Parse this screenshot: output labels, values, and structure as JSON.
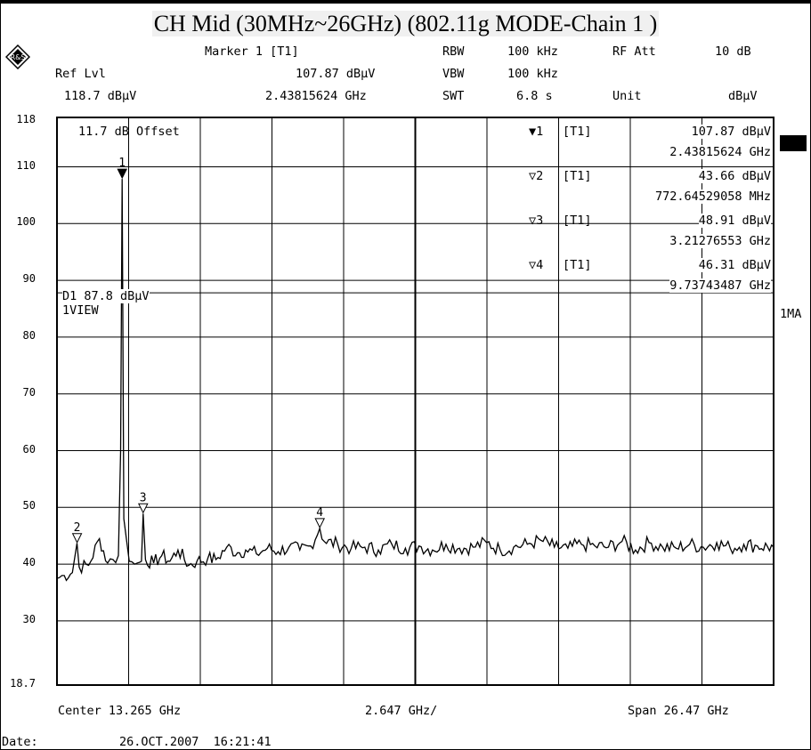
{
  "title": "CH Mid (30MHz~26GHz) (802.11g MODE-Chain 1 )",
  "header": {
    "marker_label": "Marker 1 [T1]",
    "ref_lvl_label": "Ref Lvl",
    "marker_level": "107.87 dBµV",
    "ref_lvl_value": "118.7 dBµV",
    "marker_freq": "2.43815624 GHz",
    "rbw_label": "RBW",
    "rbw_value": "100 kHz",
    "rfatt_label": "RF Att",
    "rfatt_value": "10 dB",
    "vbw_label": "VBW",
    "vbw_value": "100 kHz",
    "swt_label": "SWT",
    "swt_value": "6.8 s",
    "unit_label": "Unit",
    "unit_value": "dBµV"
  },
  "plot": {
    "offset_label": "11.7 dB Offset",
    "display_line_label": "D1 87.8 dBµV",
    "view_label": "1VIEW",
    "side_label": "1MA",
    "y_ticks": [
      "118",
      "110",
      "100",
      "90",
      "80",
      "70",
      "60",
      "50",
      "40",
      "30",
      "18.7"
    ],
    "marker_table": [
      {
        "sym": "▼1",
        "trace": "[T1]",
        "level": "107.87 dBµV",
        "freq": "2.43815624 GHz"
      },
      {
        "sym": "▽2",
        "trace": "[T1]",
        "level": "43.66 dBµV",
        "freq": "772.64529058 MHz"
      },
      {
        "sym": "▽3",
        "trace": "[T1]",
        "level": "48.91 dBµV",
        "freq": "3.21276553 GHz"
      },
      {
        "sym": "▽4",
        "trace": "[T1]",
        "level": "46.31 dBµV",
        "freq": "9.73743487 GHz"
      }
    ],
    "marker_flags": [
      "1",
      "2",
      "3",
      "4"
    ]
  },
  "footer": {
    "center": "Center 13.265 GHz",
    "div": "2.647 GHz/",
    "span": "Span 26.47 GHz",
    "date_label": "Date:",
    "date_value": "26.OCT.2007  16:21:41"
  },
  "chart_data": {
    "type": "line",
    "title": "CH Mid (30MHz~26GHz) (802.11g MODE-Chain 1 )",
    "xlabel": "",
    "ylabel": "",
    "xlim": [
      0.03,
      26.5
    ],
    "ylim": [
      18.7,
      118.7
    ],
    "grid": true,
    "display_line": 87.8,
    "markers": [
      {
        "id": 1,
        "x": 2.43815624,
        "y": 107.87
      },
      {
        "id": 2,
        "x": 0.77264529,
        "y": 43.66
      },
      {
        "id": 3,
        "x": 3.21276553,
        "y": 48.91
      },
      {
        "id": 4,
        "x": 9.73743487,
        "y": 46.31
      }
    ],
    "series": [
      {
        "x": [
          0.03,
          0.3,
          0.6,
          0.77,
          0.85,
          1.2,
          1.6,
          1.9,
          2.1,
          2.3,
          2.38,
          2.438,
          2.5,
          2.7,
          2.9,
          3.0,
          3.15,
          3.213,
          3.3,
          3.6,
          3.9,
          4.2,
          4.5,
          4.9,
          5.2,
          5.6,
          5.9,
          6.3,
          6.7,
          7.0,
          7.4,
          7.8,
          8.2,
          8.6,
          9.0,
          9.4,
          9.737,
          9.9,
          10.4,
          10.9,
          11.4,
          11.9,
          12.4,
          12.9,
          13.4,
          13.9,
          14.4,
          14.9,
          15.4,
          15.9,
          16.4,
          16.9,
          17.4,
          17.9,
          18.4,
          18.9,
          19.4,
          19.9,
          20.4,
          20.9,
          21.4,
          21.9,
          22.4,
          22.9,
          23.4,
          23.9,
          24.4,
          24.9,
          25.4,
          25.9,
          26.5
        ],
        "y": [
          37.5,
          38.0,
          38.5,
          43.7,
          39.5,
          39.8,
          44.5,
          40.2,
          40.8,
          41.5,
          60,
          107.87,
          48,
          40.5,
          40.0,
          40.2,
          40.5,
          48.91,
          40.8,
          40.2,
          41.5,
          40.5,
          42.5,
          39.8,
          40.5,
          41.0,
          40.8,
          43.0,
          42.0,
          42.5,
          41.8,
          42.8,
          42.2,
          43.0,
          42.5,
          43.2,
          46.31,
          44.0,
          43.5,
          42.8,
          43.0,
          42.5,
          43.5,
          42.8,
          43.2,
          42.5,
          43.5,
          42.8,
          43.0,
          43.8,
          42.5,
          43.0,
          43.5,
          44.2,
          43.0,
          42.8,
          43.5,
          43.2,
          43.0,
          44.0,
          42.5,
          43.8,
          43.0,
          42.8,
          43.5,
          43.0,
          43.8,
          42.8,
          43.5,
          43.2,
          43.0
        ]
      }
    ]
  }
}
